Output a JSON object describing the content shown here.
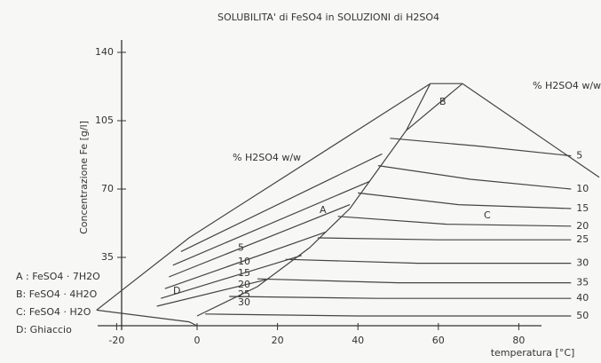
{
  "chart_data": {
    "type": "line",
    "title": "SOLUBILITA' di FeSO4 in SOLUZIONI di H2SO4",
    "y_label": "Concentrazione Fe [g/l]",
    "x_label": "temperatura [°C]",
    "xlim": [
      -25,
      95
    ],
    "ylim": [
      0,
      150
    ],
    "xticks": [
      -20,
      0,
      20,
      40,
      60,
      80
    ],
    "yticks": [
      35,
      70,
      105,
      140
    ],
    "color": "#444",
    "region_labels": [
      "A",
      "B",
      "C",
      "D"
    ],
    "annotations": [
      "% H2SO4 w/w",
      "% H2SO4 w/w"
    ],
    "legend_notes": [
      "A : FeSO4 · 7H2O",
      "B: FeSO4 · 4H2O",
      "C: FeSO4 · H2O",
      "D: Ghiaccio"
    ],
    "series": [
      {
        "x": [
          -25,
          -2,
          58
        ],
        "values": [
          8,
          45,
          124
        ]
      },
      {
        "x": [
          58,
          66
        ],
        "values": [
          124,
          124
        ]
      },
      {
        "x": [
          66,
          100
        ],
        "values": [
          124,
          76
        ]
      },
      {
        "x": [
          58,
          52
        ],
        "values": [
          124,
          100
        ]
      },
      {
        "x": [
          66,
          52,
          45,
          38,
          28,
          15,
          0
        ],
        "values": [
          124,
          100,
          80,
          60,
          40,
          20,
          5
        ]
      },
      {
        "x": [
          -25,
          -2,
          0
        ],
        "values": [
          8,
          2,
          0
        ]
      },
      {
        "x": [
          -4,
          46
        ],
        "values": [
          38,
          88
        ],
        "label": "5"
      },
      {
        "x": [
          -6,
          43
        ],
        "values": [
          31,
          74
        ],
        "label": "10"
      },
      {
        "x": [
          -7,
          38
        ],
        "values": [
          25,
          62
        ],
        "label": "15"
      },
      {
        "x": [
          -8,
          32
        ],
        "values": [
          19,
          48
        ],
        "label": "20"
      },
      {
        "x": [
          -9,
          26
        ],
        "values": [
          14,
          36
        ],
        "label": "25"
      },
      {
        "x": [
          -10,
          18
        ],
        "values": [
          10,
          24
        ],
        "label": "30"
      },
      {
        "x": [
          48,
          70,
          93
        ],
        "values": [
          96,
          92,
          87
        ],
        "label": "5"
      },
      {
        "x": [
          45,
          68,
          93
        ],
        "values": [
          82,
          75,
          70
        ],
        "label": "10"
      },
      {
        "x": [
          40,
          65,
          93
        ],
        "values": [
          68,
          62,
          60
        ],
        "label": "15"
      },
      {
        "x": [
          35,
          62,
          93
        ],
        "values": [
          56,
          52,
          51
        ],
        "label": "20"
      },
      {
        "x": [
          30,
          60,
          93
        ],
        "values": [
          45,
          44,
          44
        ],
        "label": "25"
      },
      {
        "x": [
          22,
          55,
          93
        ],
        "values": [
          34,
          32,
          32
        ],
        "label": "30"
      },
      {
        "x": [
          15,
          50,
          93
        ],
        "values": [
          24,
          22,
          22
        ],
        "label": "35"
      },
      {
        "x": [
          8,
          45,
          93
        ],
        "values": [
          15,
          14,
          14
        ],
        "label": "40"
      },
      {
        "x": [
          2,
          40,
          93
        ],
        "values": [
          6,
          5,
          5
        ],
        "label": "50"
      }
    ]
  }
}
